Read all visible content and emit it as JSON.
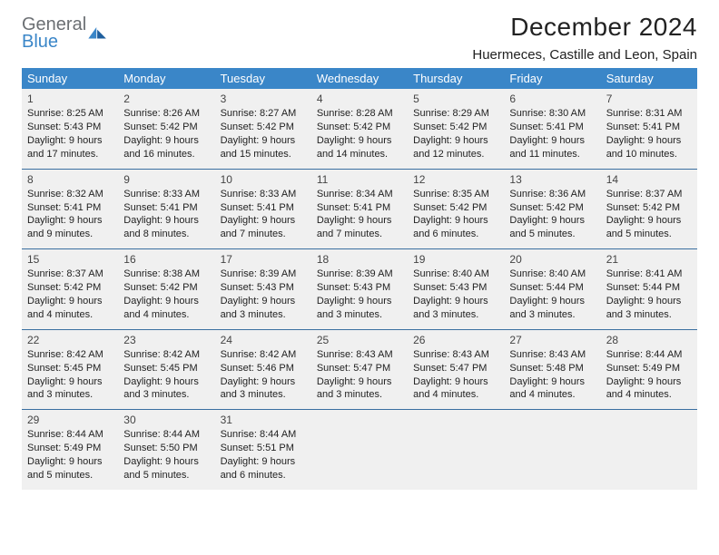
{
  "logo": {
    "word1": "General",
    "word2": "Blue"
  },
  "title": "December 2024",
  "location": "Huermeces, Castille and Leon, Spain",
  "colors": {
    "header_bg": "#3a86c8",
    "header_fg": "#ffffff",
    "cell_bg": "#f0f0f0",
    "row_border": "#3a6fa0",
    "logo_gray": "#6b6f73",
    "logo_blue": "#3a86c8",
    "text": "#222222",
    "page_bg": "#ffffff"
  },
  "typography": {
    "title_fontsize": 28,
    "subtitle_fontsize": 15,
    "day_header_fontsize": 13,
    "cell_fontsize": 11,
    "font_family": "Arial"
  },
  "day_headers": [
    "Sunday",
    "Monday",
    "Tuesday",
    "Wednesday",
    "Thursday",
    "Friday",
    "Saturday"
  ],
  "weeks": [
    [
      {
        "n": "1",
        "sunrise": "Sunrise: 8:25 AM",
        "sunset": "Sunset: 5:43 PM",
        "d1": "Daylight: 9 hours",
        "d2": "and 17 minutes."
      },
      {
        "n": "2",
        "sunrise": "Sunrise: 8:26 AM",
        "sunset": "Sunset: 5:42 PM",
        "d1": "Daylight: 9 hours",
        "d2": "and 16 minutes."
      },
      {
        "n": "3",
        "sunrise": "Sunrise: 8:27 AM",
        "sunset": "Sunset: 5:42 PM",
        "d1": "Daylight: 9 hours",
        "d2": "and 15 minutes."
      },
      {
        "n": "4",
        "sunrise": "Sunrise: 8:28 AM",
        "sunset": "Sunset: 5:42 PM",
        "d1": "Daylight: 9 hours",
        "d2": "and 14 minutes."
      },
      {
        "n": "5",
        "sunrise": "Sunrise: 8:29 AM",
        "sunset": "Sunset: 5:42 PM",
        "d1": "Daylight: 9 hours",
        "d2": "and 12 minutes."
      },
      {
        "n": "6",
        "sunrise": "Sunrise: 8:30 AM",
        "sunset": "Sunset: 5:41 PM",
        "d1": "Daylight: 9 hours",
        "d2": "and 11 minutes."
      },
      {
        "n": "7",
        "sunrise": "Sunrise: 8:31 AM",
        "sunset": "Sunset: 5:41 PM",
        "d1": "Daylight: 9 hours",
        "d2": "and 10 minutes."
      }
    ],
    [
      {
        "n": "8",
        "sunrise": "Sunrise: 8:32 AM",
        "sunset": "Sunset: 5:41 PM",
        "d1": "Daylight: 9 hours",
        "d2": "and 9 minutes."
      },
      {
        "n": "9",
        "sunrise": "Sunrise: 8:33 AM",
        "sunset": "Sunset: 5:41 PM",
        "d1": "Daylight: 9 hours",
        "d2": "and 8 minutes."
      },
      {
        "n": "10",
        "sunrise": "Sunrise: 8:33 AM",
        "sunset": "Sunset: 5:41 PM",
        "d1": "Daylight: 9 hours",
        "d2": "and 7 minutes."
      },
      {
        "n": "11",
        "sunrise": "Sunrise: 8:34 AM",
        "sunset": "Sunset: 5:41 PM",
        "d1": "Daylight: 9 hours",
        "d2": "and 7 minutes."
      },
      {
        "n": "12",
        "sunrise": "Sunrise: 8:35 AM",
        "sunset": "Sunset: 5:42 PM",
        "d1": "Daylight: 9 hours",
        "d2": "and 6 minutes."
      },
      {
        "n": "13",
        "sunrise": "Sunrise: 8:36 AM",
        "sunset": "Sunset: 5:42 PM",
        "d1": "Daylight: 9 hours",
        "d2": "and 5 minutes."
      },
      {
        "n": "14",
        "sunrise": "Sunrise: 8:37 AM",
        "sunset": "Sunset: 5:42 PM",
        "d1": "Daylight: 9 hours",
        "d2": "and 5 minutes."
      }
    ],
    [
      {
        "n": "15",
        "sunrise": "Sunrise: 8:37 AM",
        "sunset": "Sunset: 5:42 PM",
        "d1": "Daylight: 9 hours",
        "d2": "and 4 minutes."
      },
      {
        "n": "16",
        "sunrise": "Sunrise: 8:38 AM",
        "sunset": "Sunset: 5:42 PM",
        "d1": "Daylight: 9 hours",
        "d2": "and 4 minutes."
      },
      {
        "n": "17",
        "sunrise": "Sunrise: 8:39 AM",
        "sunset": "Sunset: 5:43 PM",
        "d1": "Daylight: 9 hours",
        "d2": "and 3 minutes."
      },
      {
        "n": "18",
        "sunrise": "Sunrise: 8:39 AM",
        "sunset": "Sunset: 5:43 PM",
        "d1": "Daylight: 9 hours",
        "d2": "and 3 minutes."
      },
      {
        "n": "19",
        "sunrise": "Sunrise: 8:40 AM",
        "sunset": "Sunset: 5:43 PM",
        "d1": "Daylight: 9 hours",
        "d2": "and 3 minutes."
      },
      {
        "n": "20",
        "sunrise": "Sunrise: 8:40 AM",
        "sunset": "Sunset: 5:44 PM",
        "d1": "Daylight: 9 hours",
        "d2": "and 3 minutes."
      },
      {
        "n": "21",
        "sunrise": "Sunrise: 8:41 AM",
        "sunset": "Sunset: 5:44 PM",
        "d1": "Daylight: 9 hours",
        "d2": "and 3 minutes."
      }
    ],
    [
      {
        "n": "22",
        "sunrise": "Sunrise: 8:42 AM",
        "sunset": "Sunset: 5:45 PM",
        "d1": "Daylight: 9 hours",
        "d2": "and 3 minutes."
      },
      {
        "n": "23",
        "sunrise": "Sunrise: 8:42 AM",
        "sunset": "Sunset: 5:45 PM",
        "d1": "Daylight: 9 hours",
        "d2": "and 3 minutes."
      },
      {
        "n": "24",
        "sunrise": "Sunrise: 8:42 AM",
        "sunset": "Sunset: 5:46 PM",
        "d1": "Daylight: 9 hours",
        "d2": "and 3 minutes."
      },
      {
        "n": "25",
        "sunrise": "Sunrise: 8:43 AM",
        "sunset": "Sunset: 5:47 PM",
        "d1": "Daylight: 9 hours",
        "d2": "and 3 minutes."
      },
      {
        "n": "26",
        "sunrise": "Sunrise: 8:43 AM",
        "sunset": "Sunset: 5:47 PM",
        "d1": "Daylight: 9 hours",
        "d2": "and 4 minutes."
      },
      {
        "n": "27",
        "sunrise": "Sunrise: 8:43 AM",
        "sunset": "Sunset: 5:48 PM",
        "d1": "Daylight: 9 hours",
        "d2": "and 4 minutes."
      },
      {
        "n": "28",
        "sunrise": "Sunrise: 8:44 AM",
        "sunset": "Sunset: 5:49 PM",
        "d1": "Daylight: 9 hours",
        "d2": "and 4 minutes."
      }
    ],
    [
      {
        "n": "29",
        "sunrise": "Sunrise: 8:44 AM",
        "sunset": "Sunset: 5:49 PM",
        "d1": "Daylight: 9 hours",
        "d2": "and 5 minutes."
      },
      {
        "n": "30",
        "sunrise": "Sunrise: 8:44 AM",
        "sunset": "Sunset: 5:50 PM",
        "d1": "Daylight: 9 hours",
        "d2": "and 5 minutes."
      },
      {
        "n": "31",
        "sunrise": "Sunrise: 8:44 AM",
        "sunset": "Sunset: 5:51 PM",
        "d1": "Daylight: 9 hours",
        "d2": "and 6 minutes."
      },
      null,
      null,
      null,
      null
    ]
  ]
}
